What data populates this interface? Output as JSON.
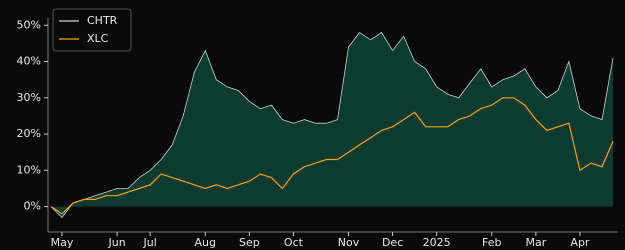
{
  "chart_data": {
    "type": "area",
    "categories": [
      null,
      "May",
      null,
      null,
      null,
      null,
      "Jun",
      null,
      null,
      "Jul",
      null,
      null,
      null,
      null,
      "Aug",
      null,
      null,
      null,
      "Sep",
      null,
      null,
      null,
      "Oct",
      null,
      null,
      null,
      null,
      "Nov",
      null,
      null,
      null,
      "Dec",
      null,
      null,
      null,
      "2025",
      null,
      null,
      null,
      null,
      "Feb",
      null,
      null,
      null,
      "Mar",
      null,
      null,
      null,
      "Apr",
      null,
      null,
      null
    ],
    "series": [
      {
        "name": "CHTR",
        "color": "#c5d6cd",
        "fill": "#0d3b30",
        "values": [
          0,
          -3,
          1,
          2,
          3,
          4,
          5,
          5,
          8,
          10,
          13,
          17,
          25,
          37,
          43,
          35,
          33,
          32,
          29,
          27,
          28,
          24,
          23,
          24,
          23,
          23,
          24,
          44,
          48,
          46,
          48,
          43,
          47,
          40,
          38,
          33,
          31,
          30,
          34,
          38,
          33,
          35,
          36,
          38,
          33,
          30,
          32,
          40,
          27,
          25,
          24,
          41
        ]
      },
      {
        "name": "XLC",
        "color": "#f0a01e",
        "values": [
          0,
          -2,
          1,
          2,
          2,
          3,
          3,
          4,
          5,
          6,
          9,
          8,
          7,
          6,
          5,
          6,
          5,
          6,
          7,
          9,
          8,
          5,
          9,
          11,
          12,
          13,
          13,
          15,
          17,
          19,
          21,
          22,
          24,
          26,
          22,
          22,
          22,
          24,
          25,
          27,
          28,
          30,
          30,
          28,
          24,
          21,
          22,
          23,
          10,
          12,
          11,
          18
        ]
      }
    ],
    "ylim": [
      -7,
      52
    ],
    "yticks": [
      {
        "value": 0,
        "label": "0%"
      },
      {
        "value": 10,
        "label": "10%"
      },
      {
        "value": 20,
        "label": "20%"
      },
      {
        "value": 30,
        "label": "30%"
      },
      {
        "value": 40,
        "label": "40%"
      },
      {
        "value": 50,
        "label": "50%"
      }
    ],
    "legend": "upper left"
  }
}
